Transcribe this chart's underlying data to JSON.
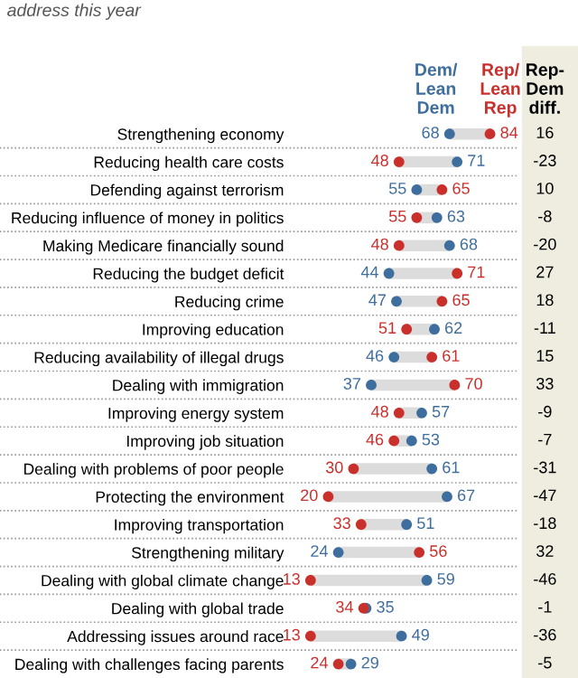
{
  "chart_data": {
    "type": "scatter",
    "orientation": "horizontal",
    "title": "address this year",
    "categories": [
      "Strengthening economy",
      "Reducing health care costs",
      "Defending against terrorism",
      "Reducing influence of money in politics",
      "Making Medicare financially sound",
      "Reducing the budget deficit",
      "Reducing crime",
      "Improving education",
      "Reducing availability of illegal drugs",
      "Dealing with immigration",
      "Improving energy system",
      "Improving job situation",
      "Dealing with problems of poor people",
      "Protecting the environment",
      "Improving transportation",
      "Strengthening military",
      "Dealing with global climate change",
      "Dealing with global trade",
      "Addressing issues around race",
      "Dealing with challenges facing parents"
    ],
    "series": [
      {
        "name": "Dem/\nLean\nDem",
        "color": "#3e6e9e",
        "values": [
          68,
          71,
          55,
          63,
          68,
          44,
          47,
          62,
          46,
          37,
          57,
          53,
          61,
          67,
          51,
          24,
          59,
          35,
          49,
          29
        ]
      },
      {
        "name": "Rep/\nLean\nRep",
        "color": "#c9302c",
        "values": [
          84,
          48,
          65,
          55,
          48,
          71,
          65,
          51,
          61,
          70,
          48,
          46,
          30,
          20,
          33,
          56,
          13,
          34,
          13,
          24
        ]
      }
    ],
    "tick_labels": "y",
    "data_labels": true,
    "legend": "top",
    "marker": "circle",
    "grid": "y",
    "annotations": [
      "Rep-\nDem\ndiff.",
      "16",
      "-23",
      "10",
      "-8",
      "-20",
      "27",
      "18",
      "-11",
      "15",
      "33",
      "-9",
      "-7",
      "-31",
      "-47",
      "-18",
      "32",
      "-46",
      "-1",
      "-36",
      "-5"
    ]
  }
}
